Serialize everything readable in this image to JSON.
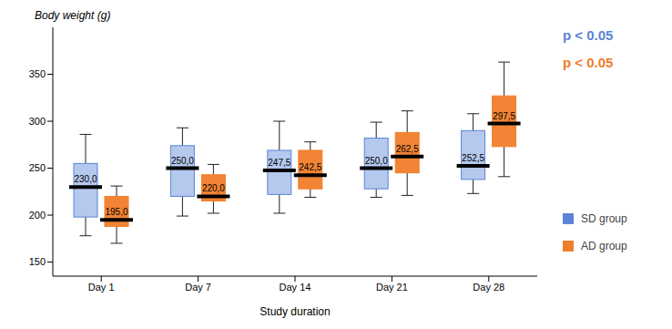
{
  "chart_data": {
    "type": "box",
    "ylabel": "Body weight (g)",
    "xlabel": "Study duration",
    "categories": [
      "Day 1",
      "Day 7",
      "Day 14",
      "Day 21",
      "Day 28"
    ],
    "ylim": [
      135,
      400
    ],
    "yticks": [
      150,
      200,
      250,
      300,
      350
    ],
    "data_labels": true,
    "legend": "right",
    "series": [
      {
        "name": "SD group",
        "color": "#5b84d6",
        "annotation": "p < 0.05",
        "values": [
          230,
          250,
          247.5,
          250,
          252.5
        ],
        "value_labels": [
          "230,0",
          "250,0",
          "247,5",
          "250,0",
          "252,5"
        ],
        "min": [
          178,
          199,
          202,
          219,
          223
        ],
        "q1": [
          198,
          220,
          222,
          228,
          238
        ],
        "q3": [
          255,
          274,
          269,
          282,
          290
        ],
        "max": [
          286,
          293,
          300,
          299,
          308
        ]
      },
      {
        "name": "AD group",
        "color": "#f07d2a",
        "annotation": "p < 0.05",
        "values": [
          195,
          220,
          242.5,
          262.5,
          297.5
        ],
        "value_labels": [
          "195,0",
          "220,0",
          "242,5",
          "262,5",
          "297,5"
        ],
        "min": [
          170,
          202,
          219,
          221,
          241
        ],
        "q1": [
          188,
          215,
          228,
          245,
          273
        ],
        "q3": [
          220,
          243,
          269,
          288,
          327
        ],
        "max": [
          231,
          254,
          278,
          311,
          363
        ]
      }
    ]
  }
}
